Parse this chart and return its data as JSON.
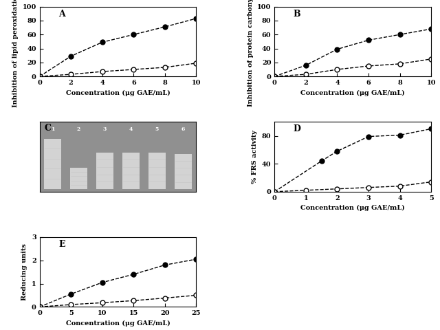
{
  "A": {
    "label": "A",
    "ylabel": "Inhibition of lipid peroxidation (%)",
    "xlabel": "Concentration (μg GAE/mL)",
    "xlim": [
      0,
      10
    ],
    "ylim": [
      0,
      100
    ],
    "xticks": [
      0,
      2,
      4,
      6,
      8,
      10
    ],
    "yticks": [
      0,
      20,
      40,
      60,
      80,
      100
    ],
    "filled_x": [
      0,
      2,
      4,
      6,
      8,
      10
    ],
    "filled_y": [
      0,
      29,
      49,
      60,
      71,
      83
    ],
    "open_x": [
      0,
      2,
      4,
      6,
      8,
      10
    ],
    "open_y": [
      0,
      3,
      7,
      10,
      13,
      19
    ]
  },
  "B": {
    "label": "B",
    "ylabel": "Inhibition of protein carbonyls (%)",
    "xlabel": "Concentration (μg GAE/mL)",
    "xlim": [
      0,
      10
    ],
    "ylim": [
      0,
      100
    ],
    "xticks": [
      0,
      2,
      4,
      6,
      8,
      10
    ],
    "yticks": [
      0,
      20,
      40,
      60,
      80,
      100
    ],
    "filled_x": [
      0,
      2,
      4,
      6,
      8,
      10
    ],
    "filled_y": [
      0,
      16,
      39,
      52,
      60,
      68
    ],
    "open_x": [
      0,
      2,
      4,
      6,
      8,
      10
    ],
    "open_y": [
      0,
      3,
      10,
      15,
      18,
      25
    ]
  },
  "D": {
    "label": "D",
    "ylabel": "% FRS activity",
    "xlabel": "Concentration (μg GAE/mL)",
    "xlim": [
      0,
      5
    ],
    "ylim": [
      0,
      100
    ],
    "xticks": [
      0,
      1,
      2,
      3,
      4,
      5
    ],
    "yticks": [
      0,
      40,
      80
    ],
    "filled_x": [
      0,
      1.5,
      2,
      3,
      4,
      5
    ],
    "filled_y": [
      0,
      44,
      58,
      79,
      81,
      90
    ],
    "open_x": [
      0,
      1,
      2,
      3,
      4,
      5
    ],
    "open_y": [
      0,
      2,
      4,
      6,
      8,
      14
    ]
  },
  "E": {
    "label": "E",
    "ylabel": "Reducing units",
    "xlabel": "Concentration (μg GAE/mL)",
    "xlim": [
      0,
      25
    ],
    "ylim": [
      0,
      3
    ],
    "xticks": [
      0,
      5,
      10,
      15,
      20,
      25
    ],
    "yticks": [
      0,
      1,
      2,
      3
    ],
    "filled_x": [
      0,
      5,
      10,
      15,
      20,
      25
    ],
    "filled_y": [
      0,
      0.55,
      1.05,
      1.4,
      1.8,
      2.05
    ],
    "open_x": [
      0,
      5,
      10,
      15,
      20,
      25
    ],
    "open_y": [
      0,
      0.1,
      0.18,
      0.27,
      0.38,
      0.5
    ]
  },
  "C_lane_labels": [
    "1",
    "2",
    "3",
    "4",
    "5",
    "6"
  ],
  "C_band_heights": [
    0.72,
    0.3,
    0.52,
    0.52,
    0.52,
    0.5
  ]
}
